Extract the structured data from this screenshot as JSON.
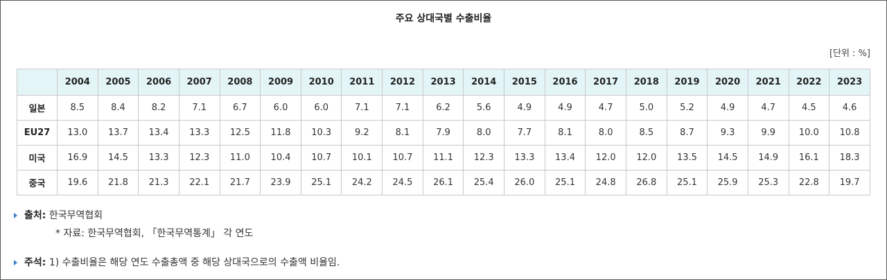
{
  "title": "주요 상대국별 수출비율",
  "unit": "[단위 : %]",
  "table": {
    "years": [
      "2004",
      "2005",
      "2006",
      "2007",
      "2008",
      "2009",
      "2010",
      "2011",
      "2012",
      "2013",
      "2014",
      "2015",
      "2016",
      "2017",
      "2018",
      "2019",
      "2020",
      "2021",
      "2022",
      "2023"
    ],
    "rows": [
      {
        "name": "일본",
        "values": [
          "8.5",
          "8.4",
          "8.2",
          "7.1",
          "6.7",
          "6.0",
          "6.0",
          "7.1",
          "7.1",
          "6.2",
          "5.6",
          "4.9",
          "4.9",
          "4.7",
          "5.0",
          "5.2",
          "4.9",
          "4.7",
          "4.5",
          "4.6"
        ]
      },
      {
        "name": "EU27",
        "values": [
          "13.0",
          "13.7",
          "13.4",
          "13.3",
          "12.5",
          "11.8",
          "10.3",
          "9.2",
          "8.1",
          "7.9",
          "8.0",
          "7.7",
          "8.1",
          "8.0",
          "8.5",
          "8.7",
          "9.3",
          "9.9",
          "10.0",
          "10.8"
        ]
      },
      {
        "name": "미국",
        "values": [
          "16.9",
          "14.5",
          "13.3",
          "12.3",
          "11.0",
          "10.4",
          "10.7",
          "10.1",
          "10.7",
          "11.1",
          "12.3",
          "13.3",
          "13.4",
          "12.0",
          "12.0",
          "13.5",
          "14.5",
          "14.9",
          "16.1",
          "18.3"
        ]
      },
      {
        "name": "중국",
        "values": [
          "19.6",
          "21.8",
          "21.3",
          "22.1",
          "21.7",
          "23.9",
          "25.1",
          "24.2",
          "24.5",
          "26.1",
          "25.4",
          "26.0",
          "25.1",
          "24.8",
          "26.8",
          "25.1",
          "25.9",
          "25.3",
          "22.8",
          "19.7"
        ]
      }
    ]
  },
  "source": {
    "label": "출처:",
    "text": "한국무역협회",
    "sub": "* 자료: 한국무역협회, 「한국무역통계」 각 연도"
  },
  "notes": {
    "label": "주석:",
    "text": "1) 수출비율은 해당 연도 수출총액 중 해당 상대국으로의 수출액 비율임."
  },
  "colors": {
    "header_bg": "#e4f5f7",
    "bullet": "#3b7fc4",
    "border": "#c8c8c8"
  }
}
